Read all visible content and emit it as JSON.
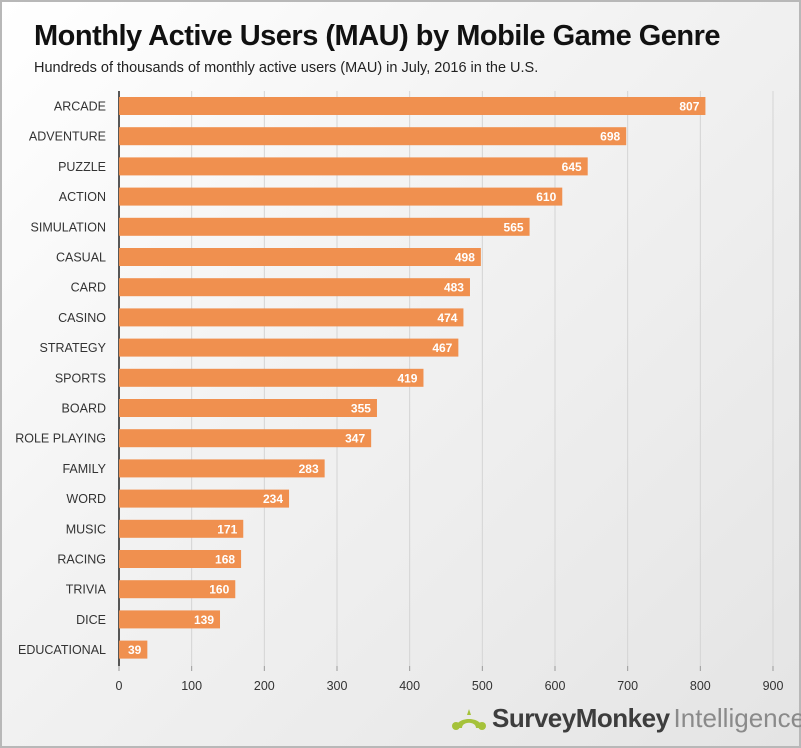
{
  "chart_data": {
    "type": "bar",
    "orientation": "horizontal",
    "title": "Monthly Active Users (MAU) by Mobile Game Genre",
    "subtitle": "Hundreds of thousands of monthly active users (MAU) in July, 2016 in the U.S.",
    "categories": [
      "ARCADE",
      "ADVENTURE",
      "PUZZLE",
      "ACTION",
      "SIMULATION",
      "CASUAL",
      "CARD",
      "CASINO",
      "STRATEGY",
      "SPORTS",
      "BOARD",
      "ROLE PLAYING",
      "FAMILY",
      "WORD",
      "MUSIC",
      "RACING",
      "TRIVIA",
      "DICE",
      "EDUCATIONAL"
    ],
    "values": [
      807,
      698,
      645,
      610,
      565,
      498,
      483,
      474,
      467,
      419,
      355,
      347,
      283,
      234,
      171,
      168,
      160,
      139,
      39
    ],
    "xlim": [
      0,
      900
    ],
    "xticks": [
      "0",
      "100",
      "200",
      "300",
      "400",
      "500",
      "600",
      "700",
      "800",
      "900"
    ],
    "grid": true,
    "bar_color": "#f0904f",
    "label_color": "#ffffff"
  },
  "branding": {
    "brand": "SurveyMonkey",
    "product": "Intelligence",
    "logo_color": "#a5c23a"
  }
}
